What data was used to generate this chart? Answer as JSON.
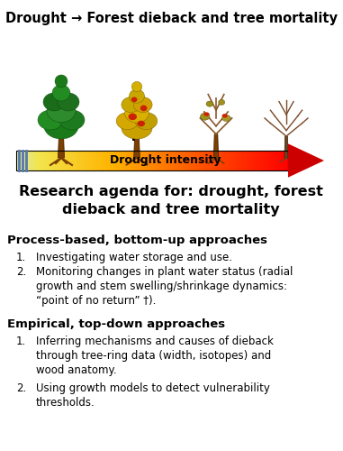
{
  "title_top": "Drought → Forest dieback and tree mortality",
  "arrow_label": "Drought intensity",
  "cross_symbol": "†",
  "section_title": "Research agenda for: drought, forest\ndieback and tree mortality",
  "section1_header": "Process-based, bottom-up approaches",
  "section1_item1": "Investigating water storage and use.",
  "section1_item2": "Monitoring changes in plant water status (radial\ngrowth and stem swelling/shrinkage dynamics:\n“point of no return” †).",
  "section2_header": "Empirical, top-down approaches",
  "section2_item1": "Inferring mechanisms and causes of dieback\nthrough tree-ring data (width, isotopes) and\nwood anatomy.",
  "section2_item2": "Using growth models to detect vulnerability\nthresholds.",
  "bg_color": "#ffffff",
  "text_color": "#000000",
  "title_fontsize": 10.5,
  "header_fontsize": 9.5,
  "body_fontsize": 8.5,
  "section_title_fontsize": 11.5
}
